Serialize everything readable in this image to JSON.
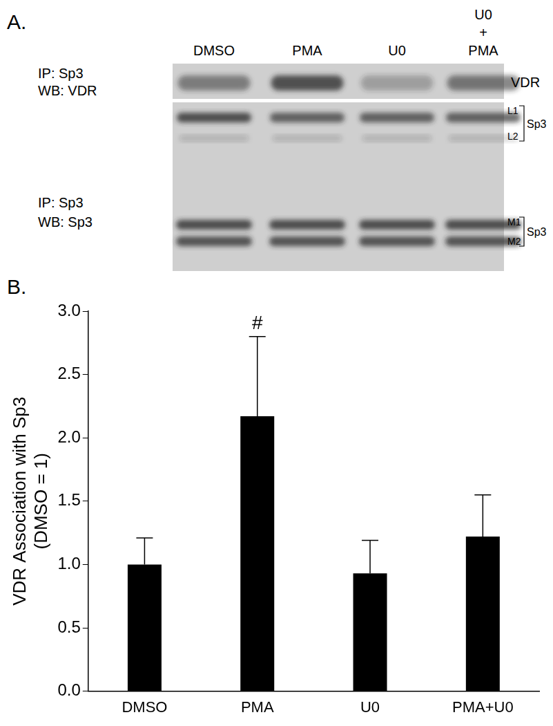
{
  "panel_a": {
    "label": "A.",
    "lanes": [
      "DMSO",
      "PMA",
      "U0",
      "U0 + PMA"
    ],
    "blots": [
      {
        "rows": [
          "IP: Sp3",
          "WB: VDR"
        ],
        "bands": [
          {
            "labels": [],
            "name": "VDR"
          }
        ]
      },
      {
        "rows": [
          "IP: Sp3",
          "WB: Sp3"
        ],
        "bands": [
          {
            "labels": [
              "L1",
              "L2"
            ],
            "name": "Sp3"
          },
          {
            "labels": [
              "M1",
              "M2"
            ],
            "name": "Sp3"
          }
        ]
      }
    ]
  },
  "chart_data": {
    "type": "bar",
    "panel_label": "B.",
    "categories": [
      "DMSO",
      "PMA",
      "U0",
      "PMA+U0"
    ],
    "values": [
      1.0,
      2.17,
      0.93,
      1.22
    ],
    "errors": [
      0.21,
      0.63,
      0.26,
      0.33
    ],
    "color": "#000000",
    "y_label": [
      "VDR Association with Sp3",
      "(DMSO = 1)"
    ],
    "ylim": [
      0,
      3
    ],
    "yticks": [
      {
        "value": 0,
        "label": "0.0"
      },
      {
        "value": 0.5,
        "label": "0.5"
      },
      {
        "value": 1,
        "label": "1.0"
      },
      {
        "value": 1.5,
        "label": "1.5"
      },
      {
        "value": 2,
        "label": "2.0"
      },
      {
        "value": 2.5,
        "label": "2.5"
      },
      {
        "value": 3,
        "label": "3.0"
      }
    ],
    "grid": false,
    "annotations": [
      {
        "category": "PMA",
        "text": "#"
      }
    ]
  }
}
